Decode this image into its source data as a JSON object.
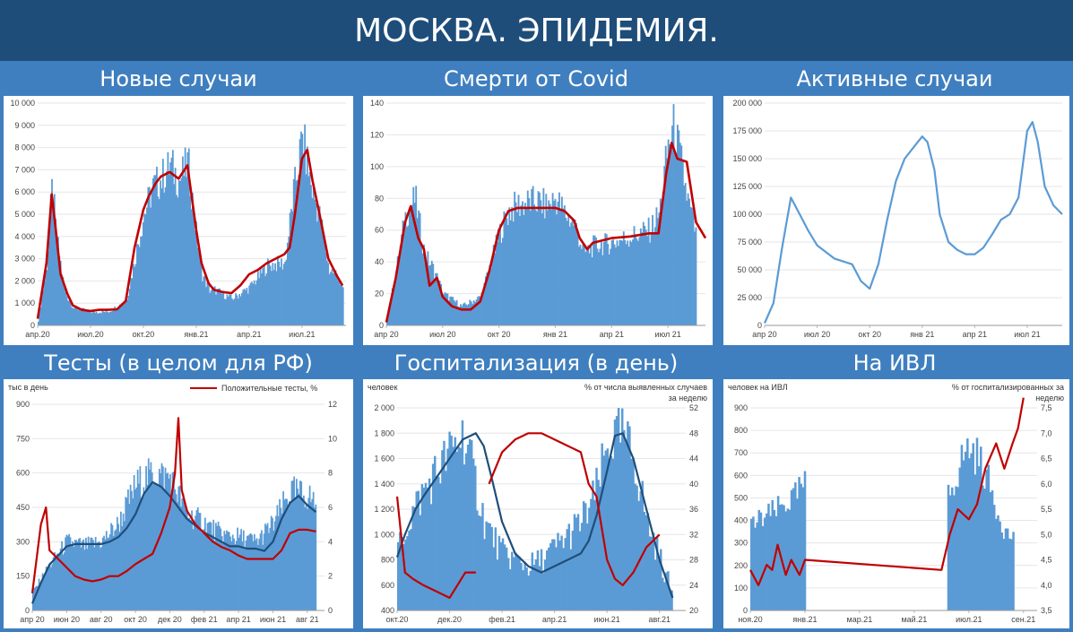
{
  "header": {
    "title": "МОСКВА. ЭПИДЕМИЯ."
  },
  "chart_data": [
    {
      "type": "bar",
      "title": "Новые случаи",
      "ylim": [
        0,
        10000
      ],
      "y_ticks": [
        "0",
        "1 000",
        "2 000",
        "3 000",
        "4 000",
        "5 000",
        "6 000",
        "7 000",
        "8 000",
        "9 000",
        "10 000"
      ],
      "x_ticks": [
        "апр.20",
        "июл.20",
        "окт.20",
        "янв.21",
        "апр.21",
        "июл.21"
      ],
      "x_tick_pos": [
        0,
        3,
        6,
        9,
        12,
        15
      ],
      "xlim": [
        0,
        17.5
      ],
      "series": [
        {
          "style": "bars",
          "color": "#5b9bd5",
          "x": [
            0,
            0.5,
            0.8,
            1,
            1.5,
            2,
            3,
            4,
            5,
            6,
            6.5,
            7,
            7.5,
            8,
            8.5,
            9,
            9.3,
            9.7,
            10,
            11,
            12,
            13,
            14,
            14.5,
            15,
            15.5,
            16,
            16.5,
            17,
            17.3
          ],
          "values": [
            200,
            2800,
            6400,
            4200,
            1500,
            800,
            600,
            620,
            1100,
            5000,
            6200,
            6600,
            7200,
            6500,
            7300,
            3900,
            2300,
            1600,
            1600,
            1200,
            1700,
            2700,
            2800,
            6000,
            8500,
            6200,
            4800,
            2500,
            2300,
            1500
          ]
        },
        {
          "style": "line",
          "color": "#c00000",
          "x": [
            0,
            0.5,
            0.8,
            1,
            1.3,
            1.7,
            2,
            2.5,
            3,
            3.5,
            4,
            4.5,
            5,
            5.5,
            6,
            6.3,
            6.7,
            7,
            7.5,
            8,
            8.5,
            9,
            9.3,
            9.7,
            10,
            10.5,
            11,
            11.5,
            12,
            12.5,
            13,
            13.5,
            14,
            14.3,
            14.6,
            15,
            15.3,
            15.6,
            16,
            16.5,
            17,
            17.3
          ],
          "values": [
            300,
            2800,
            5900,
            4500,
            2300,
            1400,
            900,
            700,
            650,
            700,
            700,
            720,
            1100,
            3500,
            5200,
            5800,
            6400,
            6700,
            6900,
            6600,
            7200,
            4300,
            2800,
            1900,
            1600,
            1500,
            1450,
            1800,
            2300,
            2500,
            2800,
            3000,
            3200,
            3500,
            5000,
            7500,
            7900,
            6500,
            5000,
            3000,
            2200,
            1800
          ]
        }
      ]
    },
    {
      "type": "bar",
      "title": "Смерти от Covid",
      "ylim": [
        0,
        140
      ],
      "y_ticks": [
        "0",
        "20",
        "40",
        "60",
        "80",
        "100",
        "120",
        "140"
      ],
      "x_ticks": [
        "апр 20",
        "июл 20",
        "окт 20",
        "янв 21",
        "апр 21",
        "июл 21"
      ],
      "x_tick_pos": [
        0,
        3,
        6,
        9,
        12,
        15
      ],
      "xlim": [
        0,
        17
      ],
      "series": [
        {
          "style": "bars",
          "color": "#5b9bd5",
          "x": [
            0,
            0.5,
            1,
            1.5,
            2,
            2.5,
            3,
            4,
            5,
            6,
            6.5,
            7,
            8,
            8.5,
            9,
            9.5,
            10,
            10.5,
            11,
            12,
            13,
            14,
            14.5,
            15,
            15.3,
            15.7,
            16,
            16.5
          ],
          "values": [
            3,
            35,
            70,
            80,
            45,
            35,
            20,
            12,
            18,
            58,
            72,
            76,
            78,
            75,
            80,
            70,
            64,
            45,
            50,
            52,
            56,
            60,
            70,
            115,
            125,
            100,
            80,
            55
          ]
        },
        {
          "style": "line",
          "color": "#c00000",
          "x": [
            0,
            0.5,
            1,
            1.3,
            1.7,
            2,
            2.3,
            2.7,
            3,
            3.5,
            4,
            4.5,
            5,
            5.5,
            6,
            6.5,
            7,
            8,
            9,
            9.5,
            10,
            10.3,
            10.7,
            11,
            12,
            13,
            14,
            14.5,
            14.9,
            15.2,
            15.5,
            16,
            16.5,
            17
          ],
          "values": [
            2,
            30,
            65,
            75,
            55,
            48,
            25,
            30,
            18,
            12,
            10,
            10,
            15,
            35,
            60,
            72,
            74,
            74,
            74,
            72,
            66,
            55,
            48,
            52,
            55,
            56,
            58,
            58,
            95,
            115,
            105,
            103,
            65,
            55
          ]
        }
      ]
    },
    {
      "type": "line",
      "title": "Активные случаи",
      "ylim": [
        0,
        200000
      ],
      "y_ticks": [
        "0",
        "25 000",
        "50 000",
        "75 000",
        "100 000",
        "125 000",
        "150 000",
        "175 000",
        "200 000"
      ],
      "x_ticks": [
        "апр 20",
        "июл 20",
        "окт 20",
        "янв 21",
        "апр 21",
        "июл 21"
      ],
      "x_tick_pos": [
        0,
        3,
        6,
        9,
        12,
        15
      ],
      "xlim": [
        0,
        17
      ],
      "series": [
        {
          "style": "line",
          "color": "#5b9bd5",
          "x": [
            0,
            0.5,
            1,
            1.5,
            2,
            2.5,
            3,
            4,
            5,
            5.5,
            6,
            6.5,
            7,
            7.5,
            8,
            8.5,
            9,
            9.3,
            9.7,
            10,
            10.5,
            11,
            11.5,
            12,
            12.5,
            13,
            13.5,
            14,
            14.5,
            15,
            15.3,
            15.6,
            16,
            16.5,
            17
          ],
          "values": [
            2000,
            20000,
            70000,
            115000,
            100000,
            85000,
            72000,
            60000,
            55000,
            40000,
            33000,
            55000,
            95000,
            130000,
            150000,
            160000,
            170000,
            165000,
            140000,
            100000,
            75000,
            68000,
            64000,
            64000,
            70000,
            82000,
            95000,
            100000,
            115000,
            175000,
            183000,
            165000,
            125000,
            108000,
            100000
          ]
        }
      ]
    },
    {
      "type": "bar",
      "title": "Тесты (в целом для РФ)",
      "ylabel": "тыс в день",
      "ylim": [
        0,
        900
      ],
      "y2lim": [
        0,
        12
      ],
      "y_ticks": [
        "0",
        "150",
        "300",
        "450",
        "600",
        "750",
        "900"
      ],
      "y2_ticks": [
        "0",
        "2",
        "4",
        "6",
        "8",
        "10",
        "12"
      ],
      "x_ticks": [
        "апр 20",
        "июн 20",
        "авг 20",
        "окт 20",
        "дек 20",
        "фев 21",
        "апр 21",
        "июн 21",
        "авг 21"
      ],
      "x_tick_pos": [
        0,
        2,
        4,
        6,
        8,
        10,
        12,
        14,
        16
      ],
      "xlim": [
        0,
        17
      ],
      "legend": "Положительные тесты, %",
      "series": [
        {
          "style": "bars",
          "color": "#5b9bd5",
          "x": [
            0,
            1,
            2,
            3,
            4,
            5,
            6,
            7,
            8,
            9,
            10,
            11,
            12,
            13,
            14,
            15,
            16,
            16.5
          ],
          "values": [
            80,
            200,
            300,
            280,
            300,
            380,
            550,
            600,
            580,
            420,
            380,
            330,
            320,
            300,
            380,
            520,
            500,
            470
          ]
        },
        {
          "style": "line",
          "color": "#1f4e79",
          "x": [
            0,
            0.5,
            1,
            1.5,
            2,
            2.5,
            3,
            3.5,
            4,
            4.5,
            5,
            5.5,
            6,
            6.5,
            7,
            7.5,
            8,
            8.3,
            8.6,
            9,
            9.5,
            10,
            10.5,
            11,
            11.5,
            12,
            12.5,
            13,
            13.5,
            14,
            14.5,
            15,
            15.5,
            16,
            16.5
          ],
          "values": [
            30,
            120,
            200,
            240,
            280,
            290,
            290,
            290,
            290,
            300,
            320,
            360,
            420,
            510,
            560,
            540,
            500,
            470,
            440,
            400,
            370,
            340,
            320,
            300,
            280,
            280,
            270,
            270,
            260,
            300,
            400,
            470,
            500,
            460,
            430
          ]
        },
        {
          "style": "line",
          "axis": "right",
          "color": "#c00000",
          "x": [
            0,
            0.5,
            0.8,
            1,
            1.5,
            2,
            2.5,
            3,
            3.5,
            4,
            4.5,
            5,
            5.5,
            6,
            6.5,
            7,
            7.5,
            8,
            8.3,
            8.5,
            8.7,
            9,
            9.5,
            10,
            10.5,
            11,
            11.5,
            12,
            12.5,
            13,
            13.5,
            14,
            14.5,
            15,
            15.5,
            16,
            16.5
          ],
          "values": [
            1,
            5,
            6,
            3.5,
            3,
            2.5,
            2,
            1.8,
            1.7,
            1.8,
            2,
            2,
            2.3,
            2.7,
            3,
            3.3,
            4.5,
            6,
            8,
            11.2,
            7,
            5.8,
            5,
            4.5,
            4,
            3.7,
            3.5,
            3.2,
            3,
            3,
            3,
            3,
            3.5,
            4.5,
            4.7,
            4.7,
            4.6
          ]
        }
      ]
    },
    {
      "type": "bar",
      "title": "Госпитализация (в день)",
      "ylabel": "человек",
      "y2label": "% от числа выявленных случаев за неделю",
      "ylim": [
        400,
        2000
      ],
      "y2lim": [
        20,
        52
      ],
      "y_ticks": [
        "400",
        "600",
        "800",
        "1 000",
        "1 200",
        "1 400",
        "1 600",
        "1 800",
        "2 000"
      ],
      "y2_ticks": [
        "20",
        "24",
        "28",
        "32",
        "36",
        "40",
        "44",
        "48",
        "52"
      ],
      "x_ticks": [
        "окт.20",
        "дек.20",
        "фев.21",
        "апр.21",
        "июн.21",
        "авг.21"
      ],
      "x_tick_pos": [
        0,
        2,
        4,
        6,
        8,
        10
      ],
      "xlim": [
        0,
        11
      ],
      "series": [
        {
          "style": "bars",
          "color": "#5b9bd5",
          "x": [
            0,
            0.5,
            1,
            1.5,
            2,
            2.5,
            3.3,
            3.7,
            4,
            4.5,
            5,
            5.5,
            6,
            6.5,
            7,
            7.5,
            8,
            8.5,
            9,
            9.5,
            10,
            10.5
          ],
          "values": [
            900,
            1150,
            1350,
            1500,
            1650,
            1800,
            1100,
            950,
            850,
            800,
            750,
            800,
            900,
            1000,
            1100,
            1300,
            1700,
            1800,
            1600,
            1100,
            800,
            500
          ]
        },
        {
          "style": "line",
          "color": "#1f4e79",
          "x": [
            0,
            0.3,
            0.7,
            1,
            1.5,
            2,
            2.5,
            3,
            3.3,
            3.6,
            4,
            4.5,
            5,
            5.5,
            6,
            6.5,
            7,
            7.3,
            7.6,
            8,
            8.3,
            8.6,
            9,
            9.5,
            10,
            10.5
          ],
          "values": [
            820,
            1000,
            1200,
            1300,
            1450,
            1600,
            1750,
            1800,
            1700,
            1450,
            1100,
            850,
            750,
            700,
            750,
            800,
            850,
            950,
            1150,
            1500,
            1780,
            1800,
            1600,
            1200,
            800,
            500
          ]
        },
        {
          "style": "line",
          "axis": "right",
          "color": "#c00000",
          "x": [
            0,
            0.3,
            0.6,
            1,
            1.5,
            2,
            2.3,
            2.6,
            3,
            3.2,
            3.5,
            4,
            4.5,
            5,
            5.5,
            6,
            6.5,
            7,
            7.3,
            7.6,
            8,
            8.3,
            8.6,
            9,
            9.5,
            10
          ],
          "values": [
            38,
            26,
            25,
            24,
            23,
            22,
            24,
            26,
            26,
            null,
            40,
            45,
            47,
            48,
            48,
            47,
            46,
            45,
            40,
            38,
            28,
            25,
            24,
            26,
            30,
            32
          ]
        }
      ]
    },
    {
      "type": "bar",
      "title": "На ИВЛ",
      "ylabel": "человек на ИВЛ",
      "y2label": "% от госпитализированных за неделю",
      "ylim": [
        0,
        900
      ],
      "y2lim": [
        3.5,
        7.5
      ],
      "y_ticks": [
        "0",
        "100",
        "200",
        "300",
        "400",
        "500",
        "600",
        "700",
        "800",
        "900"
      ],
      "y2_ticks": [
        "3,5",
        "4,0",
        "4,5",
        "5,0",
        "5,5",
        "6,0",
        "6,5",
        "7,0",
        "7,5"
      ],
      "x_ticks": [
        "ноя.20",
        "янв.21",
        "мар.21",
        "май.21",
        "июл.21",
        "сен.21"
      ],
      "x_tick_pos": [
        0,
        2,
        4,
        6,
        8,
        10
      ],
      "xlim": [
        0,
        10.5
      ],
      "series": [
        {
          "style": "bars",
          "color": "#5b9bd5",
          "x": [
            0,
            0.3,
            0.6,
            1,
            1.3,
            1.6,
            1.8,
            2,
            7,
            7.2,
            7.5,
            7.8,
            8,
            8.3,
            8.6,
            9,
            9.3,
            9.6
          ],
          "values": [
            380,
            400,
            420,
            450,
            480,
            500,
            540,
            560,
            null,
            500,
            600,
            700,
            720,
            680,
            600,
            450,
            350,
            320
          ]
        },
        {
          "style": "line",
          "axis": "right",
          "color": "#c00000",
          "x": [
            0,
            0.3,
            0.6,
            0.8,
            1,
            1.3,
            1.5,
            1.8,
            2,
            7,
            7.3,
            7.6,
            8,
            8.3,
            8.6,
            9,
            9.3,
            9.6,
            9.8,
            10
          ],
          "values": [
            4.3,
            4,
            4.4,
            4.3,
            4.8,
            4.2,
            4.5,
            4.2,
            4.5,
            4.3,
            5,
            5.5,
            5.3,
            5.6,
            6.3,
            6.8,
            6.3,
            6.8,
            7.1,
            7.7
          ]
        }
      ]
    }
  ]
}
